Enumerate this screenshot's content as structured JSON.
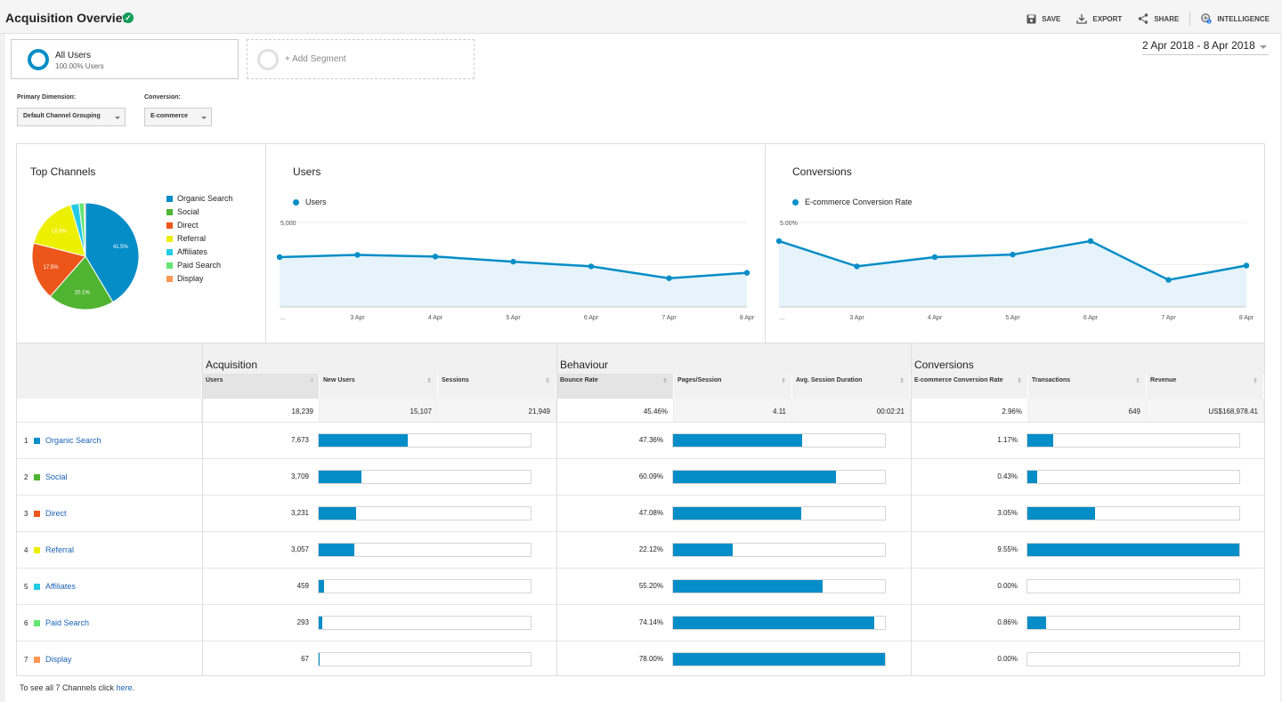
{
  "header": {
    "title": "Acquisition Overview",
    "actions": [
      {
        "label": "SAVE",
        "icon": "save-icon"
      },
      {
        "label": "EXPORT",
        "icon": "export-icon"
      },
      {
        "label": "SHARE",
        "icon": "share-icon"
      },
      {
        "label": "INTELLIGENCE",
        "icon": "intelligence-icon"
      }
    ]
  },
  "segments": {
    "active": {
      "name": "All Users",
      "sub": "100.00% Users"
    },
    "add_label": "+ Add Segment"
  },
  "date_range": "2 Apr 2018 - 8 Apr 2018",
  "controls": {
    "primary_dimension_label": "Primary Dimension:",
    "primary_dimension_value": "Default Channel Grouping",
    "conversion_label": "Conversion:",
    "conversion_value": "E-commerce"
  },
  "colors": {
    "accent": "#058dc7",
    "link": "#1a62b5",
    "verified": "#0f9d58"
  },
  "channels_panel": {
    "title": "Top Channels",
    "legend": [
      {
        "label": "Organic Search",
        "color": "#058dc7"
      },
      {
        "label": "Social",
        "color": "#50b432"
      },
      {
        "label": "Direct",
        "color": "#ed561b"
      },
      {
        "label": "Referral",
        "color": "#edef00"
      },
      {
        "label": "Affiliates",
        "color": "#24cbe5"
      },
      {
        "label": "Paid Search",
        "color": "#64e572"
      },
      {
        "label": "Display",
        "color": "#ff9655"
      }
    ]
  },
  "chart_data": [
    {
      "type": "pie",
      "title": "Top Channels",
      "categories": [
        "Organic Search",
        "Social",
        "Direct",
        "Referral",
        "Affiliates",
        "Paid Search",
        "Display"
      ],
      "values": [
        41.5,
        20.1,
        17.5,
        16.6,
        2.5,
        1.6,
        0.4
      ],
      "slice_labels": [
        "41.5%",
        "20.1%",
        "17.5%",
        "16.6%",
        "",
        "",
        ""
      ]
    },
    {
      "type": "area",
      "title": "Users",
      "series": [
        {
          "name": "Users",
          "values": [
            2950,
            3080,
            2980,
            2680,
            2400,
            1700,
            2020
          ]
        }
      ],
      "x": [
        "…",
        "3 Apr",
        "4 Apr",
        "5 Apr",
        "6 Apr",
        "7 Apr",
        "8 Apr"
      ],
      "yticks": [
        "5,000",
        "2,500"
      ],
      "ylim": [
        0,
        5000
      ]
    },
    {
      "type": "area",
      "title": "Conversions",
      "series": [
        {
          "name": "E-commerce Conversion Rate",
          "values": [
            3.9,
            2.4,
            2.95,
            3.1,
            3.9,
            1.6,
            2.45
          ]
        }
      ],
      "x": [
        "…",
        "3 Apr",
        "4 Apr",
        "5 Apr",
        "6 Apr",
        "7 Apr",
        "8 Apr"
      ],
      "yticks": [
        "5.00%",
        "2.50%"
      ],
      "ylim": [
        0,
        5
      ]
    }
  ],
  "table": {
    "groups": [
      "Acquisition",
      "Behaviour",
      "Conversions"
    ],
    "columns": [
      "Users",
      "New Users",
      "Sessions",
      "Bounce Rate",
      "Pages/Session",
      "Avg. Session Duration",
      "E-commerce Conversion Rate",
      "Transactions",
      "Revenue"
    ],
    "totals": [
      "18,239",
      "15,107",
      "21,949",
      "45.46%",
      "4.11",
      "00:02:21",
      "2.96%",
      "649",
      "US$168,978.41"
    ],
    "rows": [
      {
        "rank": "1",
        "channel": "Organic Search",
        "color": "#058dc7",
        "users": "7,673",
        "users_share": 0.42,
        "bounce": "47.36%",
        "bounce_share": 0.6073,
        "conv": "1.17%",
        "conv_share": 0.1225
      },
      {
        "rank": "2",
        "channel": "Social",
        "color": "#50b432",
        "users": "3,709",
        "users_share": 0.2034,
        "bounce": "60.09%",
        "bounce_share": 0.7705,
        "conv": "0.43%",
        "conv_share": 0.045
      },
      {
        "rank": "3",
        "channel": "Direct",
        "color": "#ed561b",
        "users": "3,231",
        "users_share": 0.1772,
        "bounce": "47.08%",
        "bounce_share": 0.6036,
        "conv": "3.05%",
        "conv_share": 0.3194
      },
      {
        "rank": "4",
        "channel": "Referral",
        "color": "#edef00",
        "users": "3,057",
        "users_share": 0.1676,
        "bounce": "22.12%",
        "bounce_share": 0.2836,
        "conv": "9.55%",
        "conv_share": 1.0
      },
      {
        "rank": "5",
        "channel": "Affiliates",
        "color": "#24cbe5",
        "users": "459",
        "users_share": 0.0252,
        "bounce": "55.20%",
        "bounce_share": 0.7077,
        "conv": "0.00%",
        "conv_share": 0
      },
      {
        "rank": "6",
        "channel": "Paid Search",
        "color": "#64e572",
        "users": "293",
        "users_share": 0.0161,
        "bounce": "74.14%",
        "bounce_share": 0.9505,
        "conv": "0.86%",
        "conv_share": 0.0901
      },
      {
        "rank": "7",
        "channel": "Display",
        "color": "#ff9655",
        "users": "67",
        "users_share": 0.0037,
        "bounce": "78.00%",
        "bounce_share": 1.0,
        "conv": "0.00%",
        "conv_share": 0
      }
    ]
  },
  "footer": {
    "text": "To see all 7 Channels click ",
    "link": "here",
    "suffix": "."
  }
}
